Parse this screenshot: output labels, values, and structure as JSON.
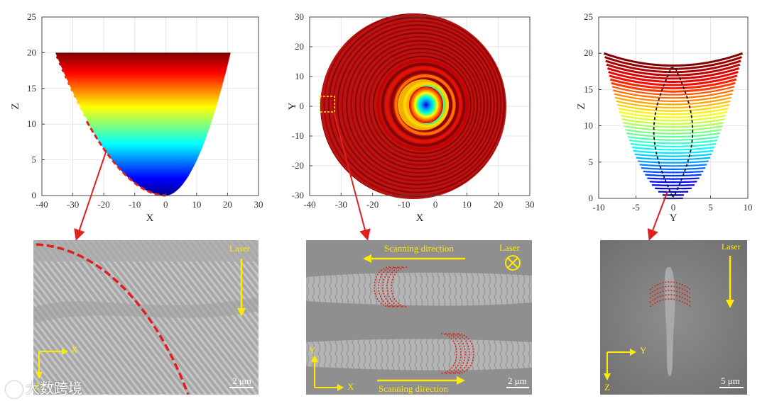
{
  "chart_data": [
    {
      "type": "area",
      "xlabel": "X",
      "ylabel": "Z",
      "xlim": [
        -40,
        30
      ],
      "ylim": [
        0,
        25
      ],
      "xticks": [
        "-40",
        "-30",
        "-20",
        "-10",
        "0",
        "10",
        "20",
        "30"
      ],
      "yticks": [
        "0",
        "5",
        "10",
        "15",
        "20",
        "25"
      ],
      "grid": true
    },
    {
      "type": "heatmap",
      "xlabel": "X",
      "ylabel": "Y",
      "xlim": [
        -40,
        30
      ],
      "ylim": [
        -30,
        30
      ],
      "xticks": [
        "-40",
        "-30",
        "-20",
        "-10",
        "0",
        "10",
        "20",
        "30"
      ],
      "yticks": [
        "-30",
        "-20",
        "-10",
        "0",
        "10",
        "20",
        "30"
      ],
      "grid": true
    },
    {
      "type": "line",
      "xlabel": "Y",
      "ylabel": "Z",
      "xlim": [
        -10,
        10
      ],
      "ylim": [
        0,
        25
      ],
      "xticks": [
        "-10",
        "-5",
        "0",
        "5",
        "10"
      ],
      "yticks": [
        "0",
        "5",
        "10",
        "15",
        "20",
        "25"
      ],
      "grid": true
    }
  ],
  "micrographs": {
    "left": {
      "laser": "Laser",
      "axis_x": "X",
      "axis_z": "Z",
      "scale": "2 μm"
    },
    "middle": {
      "scan_top": "Scanning direction",
      "scan_bottom": "Scanning direction",
      "laser": "Laser",
      "axis_x": "X",
      "axis_y": "Y",
      "scale": "2 μm"
    },
    "right": {
      "laser": "Laser",
      "axis_y": "Y",
      "axis_z": "Z",
      "scale": "5 μm"
    }
  },
  "colors": {
    "arrow": "#e0201c",
    "annotation": "#ffea00",
    "dash": "#e0201c"
  },
  "watermark": "大数跨境"
}
